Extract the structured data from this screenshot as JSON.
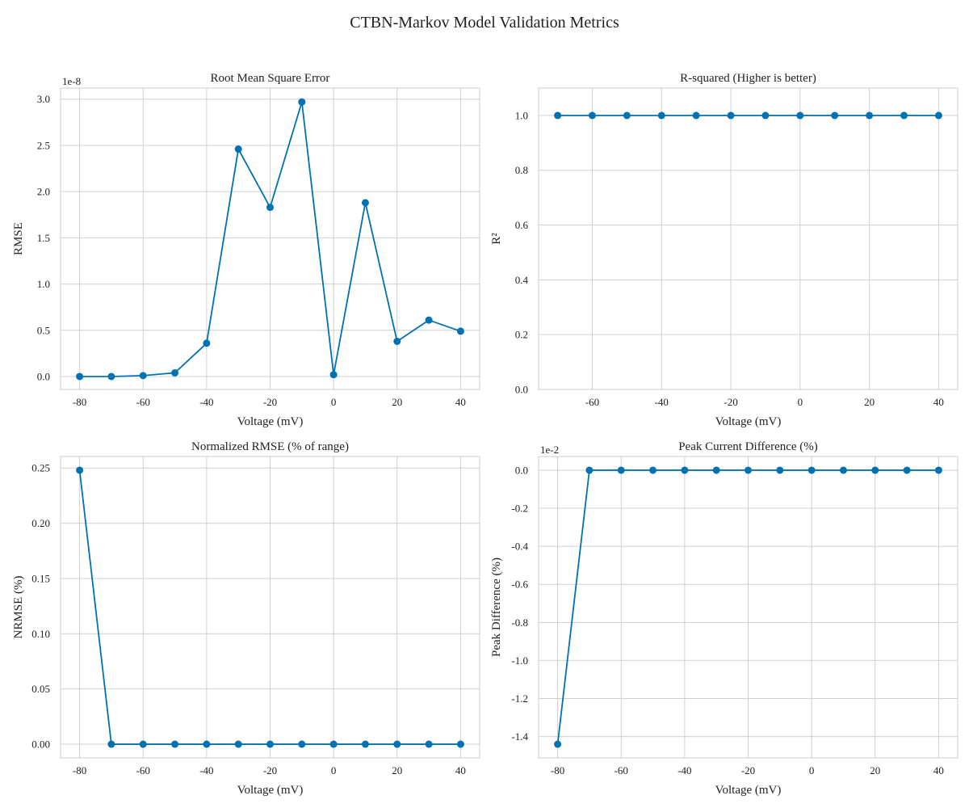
{
  "figure": {
    "title": "CTBN-Markov Model Validation Metrics"
  },
  "style": {
    "line_color": "#0072b2",
    "grid_color": "#d0d0d0"
  },
  "chart_data": [
    {
      "type": "line",
      "title": "Root Mean Square Error",
      "xlabel": "Voltage (mV)",
      "ylabel": "RMSE",
      "offset_label": "1e-8",
      "x": [
        -80,
        -70,
        -60,
        -50,
        -40,
        -30,
        -20,
        -10,
        0,
        10,
        20,
        30,
        40
      ],
      "y": [
        0.0,
        0.0,
        0.01,
        0.04,
        0.36,
        2.46,
        1.83,
        2.97,
        0.02,
        1.88,
        0.38,
        0.61,
        0.49
      ],
      "xlim": [
        -86,
        46
      ],
      "ylim": [
        -0.14,
        3.12
      ],
      "xticks": [
        -80,
        -60,
        -40,
        -20,
        0,
        20,
        40
      ],
      "xtick_labels": [
        "-80",
        "-60",
        "-40",
        "-20",
        "0",
        "20",
        "40"
      ],
      "yticks": [
        0.0,
        0.5,
        1.0,
        1.5,
        2.0,
        2.5,
        3.0
      ],
      "ytick_labels": [
        "0.0",
        "0.5",
        "1.0",
        "1.5",
        "2.0",
        "2.5",
        "3.0"
      ],
      "grid": true
    },
    {
      "type": "line",
      "title": "R-squared (Higher is better)",
      "xlabel": "Voltage (mV)",
      "ylabel": "R²",
      "x": [
        -70,
        -60,
        -50,
        -40,
        -30,
        -20,
        -10,
        0,
        10,
        20,
        30,
        40
      ],
      "y": [
        1.0,
        1.0,
        1.0,
        1.0,
        1.0,
        1.0,
        1.0,
        1.0,
        1.0,
        1.0,
        1.0,
        1.0
      ],
      "xlim": [
        -75.5,
        45.5
      ],
      "ylim": [
        0.0,
        1.1
      ],
      "xticks": [
        -60,
        -40,
        -20,
        0,
        20,
        40
      ],
      "xtick_labels": [
        "-60",
        "-40",
        "-20",
        "0",
        "20",
        "40"
      ],
      "yticks": [
        0.0,
        0.2,
        0.4,
        0.6,
        0.8,
        1.0
      ],
      "ytick_labels": [
        "0.0",
        "0.2",
        "0.4",
        "0.6",
        "0.8",
        "1.0"
      ],
      "grid": true
    },
    {
      "type": "line",
      "title": "Normalized RMSE (% of range)",
      "xlabel": "Voltage (mV)",
      "ylabel": "NRMSE (%)",
      "x": [
        -80,
        -70,
        -60,
        -50,
        -40,
        -30,
        -20,
        -10,
        0,
        10,
        20,
        30,
        40
      ],
      "y": [
        0.248,
        0.0,
        0.0,
        0.0,
        0.0,
        0.0,
        0.0,
        0.0,
        0.0,
        0.0,
        0.0,
        0.0,
        0.0
      ],
      "xlim": [
        -86,
        46
      ],
      "ylim": [
        -0.0124,
        0.2604
      ],
      "xticks": [
        -80,
        -60,
        -40,
        -20,
        0,
        20,
        40
      ],
      "xtick_labels": [
        "-80",
        "-60",
        "-40",
        "-20",
        "0",
        "20",
        "40"
      ],
      "yticks": [
        0.0,
        0.05,
        0.1,
        0.15,
        0.2,
        0.25
      ],
      "ytick_labels": [
        "0.00",
        "0.05",
        "0.10",
        "0.15",
        "0.20",
        "0.25"
      ],
      "grid": true
    },
    {
      "type": "line",
      "title": "Peak Current Difference (%)",
      "xlabel": "Voltage (mV)",
      "ylabel": "Peak Difference (%)",
      "offset_label": "1e-2",
      "x": [
        -80,
        -70,
        -60,
        -50,
        -40,
        -30,
        -20,
        -10,
        0,
        10,
        20,
        30,
        40
      ],
      "y": [
        -1.44,
        0.0,
        0.0,
        0.0,
        0.0,
        0.0,
        0.0,
        0.0,
        0.0,
        0.0,
        0.0,
        0.0,
        0.0
      ],
      "xlim": [
        -86,
        46
      ],
      "ylim": [
        -1.512,
        0.072
      ],
      "xticks": [
        -80,
        -60,
        -40,
        -20,
        0,
        20,
        40
      ],
      "xtick_labels": [
        "-80",
        "-60",
        "-40",
        "-20",
        "0",
        "20",
        "40"
      ],
      "yticks": [
        -1.4,
        -1.2,
        -1.0,
        -0.8,
        -0.6,
        -0.4,
        -0.2,
        0.0
      ],
      "ytick_labels": [
        "-1.4",
        "-1.2",
        "-1.0",
        "-0.8",
        "-0.6",
        "-0.4",
        "-0.2",
        "0.0"
      ],
      "grid": true
    }
  ]
}
